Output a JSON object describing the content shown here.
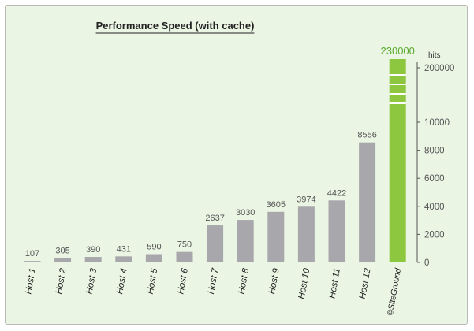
{
  "chart_data": {
    "type": "bar",
    "title": "Performance Speed (with cache)",
    "categories": [
      "Host 1",
      "Host 2",
      "Host 3",
      "Host 4",
      "Host 5",
      "Host 6",
      "Host 7",
      "Host 8",
      "Host 9",
      "Host 10",
      "Host 11",
      "Host 12",
      "©SiteGround"
    ],
    "values": [
      107,
      305,
      390,
      431,
      590,
      750,
      2637,
      3030,
      3605,
      3974,
      4422,
      8556,
      230000
    ],
    "value_labels": [
      "107",
      "305",
      "390",
      "431",
      "590",
      "750",
      "2637",
      "3030",
      "3605",
      "3974",
      "4422",
      "8556",
      "230000"
    ],
    "ylabel": "hits",
    "ylim": [
      0,
      10000
    ],
    "yticks": [
      "0",
      "2000",
      "4000",
      "6000",
      "8000",
      "10000"
    ],
    "axis_break_tick": "200000",
    "axis_break": true,
    "grid": false,
    "colors": {
      "bar": "#a8a8ac",
      "highlight": "#8dc63f",
      "highlight_label": "#5aaa2c",
      "background": "#eaf5e4"
    }
  }
}
